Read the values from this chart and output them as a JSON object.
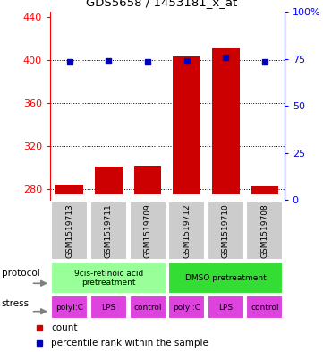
{
  "title": "GDS5658 / 1453181_x_at",
  "samples": [
    "GSM1519713",
    "GSM1519711",
    "GSM1519709",
    "GSM1519712",
    "GSM1519710",
    "GSM1519708"
  ],
  "counts": [
    284,
    301,
    302,
    403,
    411,
    283
  ],
  "percentile_ranks": [
    73.5,
    73.8,
    73.2,
    73.8,
    75.5,
    73.2
  ],
  "ylim_left": [
    270,
    445
  ],
  "ylim_right": [
    0,
    100
  ],
  "left_ticks": [
    280,
    320,
    360,
    400,
    440
  ],
  "right_ticks": [
    0,
    25,
    50,
    75,
    100
  ],
  "right_tick_labels": [
    "0",
    "25",
    "50",
    "75",
    "100%"
  ],
  "bar_color": "#cc0000",
  "dot_color": "#0000bb",
  "protocol_labels": [
    "9cis-retinoic acid\npretreatment",
    "DMSO pretreatment"
  ],
  "protocol_colors": [
    "#99ff99",
    "#33dd33"
  ],
  "stress_labels": [
    "polyI:C",
    "LPS",
    "control",
    "polyI:C",
    "LPS",
    "control"
  ],
  "stress_color": "#dd44dd",
  "sample_bg_color": "#cccccc",
  "base_value": 275
}
